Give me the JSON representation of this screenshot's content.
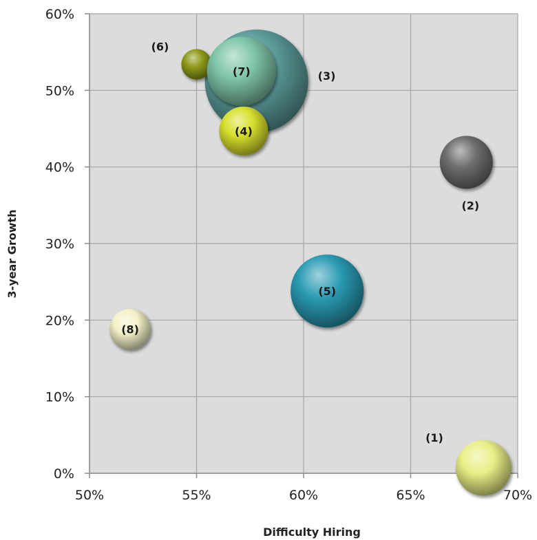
{
  "chart_data": {
    "type": "scatter",
    "variant": "bubble",
    "xlabel": "Difficulty  Hiring",
    "ylabel": "3-year Growth",
    "xlim": [
      0.5,
      0.7
    ],
    "ylim": [
      0.0,
      0.6
    ],
    "x_ticks": [
      {
        "value": 0.5,
        "label": "50%"
      },
      {
        "value": 0.55,
        "label": "55%"
      },
      {
        "value": 0.6,
        "label": "60%"
      },
      {
        "value": 0.65,
        "label": "65%"
      },
      {
        "value": 0.7,
        "label": "70%"
      }
    ],
    "y_ticks": [
      {
        "value": 0.0,
        "label": "0%"
      },
      {
        "value": 0.1,
        "label": "10%"
      },
      {
        "value": 0.2,
        "label": "20%"
      },
      {
        "value": 0.3,
        "label": "30%"
      },
      {
        "value": 0.4,
        "label": "40%"
      },
      {
        "value": 0.5,
        "label": "50%"
      },
      {
        "value": 0.6,
        "label": "60%"
      }
    ],
    "grid": true,
    "plot_background": "#dcdcdc",
    "grid_color": "#a6a6a6",
    "points": [
      {
        "label": "(3)",
        "x": 0.578,
        "y": 0.512,
        "size": 3.8,
        "color": "#5b9c9a",
        "label_pos": "right"
      },
      {
        "label": "(6)",
        "x": 0.55,
        "y": 0.534,
        "size": 0.33,
        "color": "#8e9a1a",
        "label_pos": "upper-left"
      },
      {
        "label": "(7)",
        "x": 0.571,
        "y": 0.525,
        "size": 1.7,
        "color": "#7fc6a8",
        "label_pos": "center"
      },
      {
        "label": "(4)",
        "x": 0.572,
        "y": 0.447,
        "size": 0.85,
        "color": "#d8e02e",
        "label_pos": "center"
      },
      {
        "label": "(2)",
        "x": 0.676,
        "y": 0.406,
        "size": 1.0,
        "color": "#6d6d6d",
        "label_pos": "below"
      },
      {
        "label": "(5)",
        "x": 0.611,
        "y": 0.238,
        "size": 1.9,
        "color": "#2a9bb3",
        "label_pos": "center"
      },
      {
        "label": "(8)",
        "x": 0.519,
        "y": 0.188,
        "size": 0.6,
        "color": "#f4f2c8",
        "label_pos": "center"
      },
      {
        "label": "(1)",
        "x": 0.684,
        "y": 0.007,
        "size": 1.1,
        "color": "#e9ef86",
        "label_pos": "upper-left"
      }
    ]
  }
}
